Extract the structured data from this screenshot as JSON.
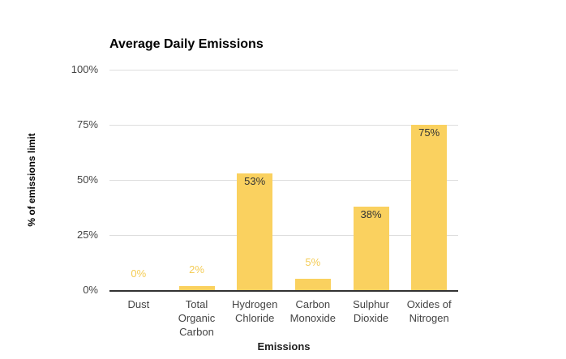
{
  "chart_data": {
    "type": "bar",
    "title": "Average Daily Emissions",
    "xlabel": "Emissions",
    "ylabel": "% of emissions limit",
    "categories": [
      "Dust",
      "Total Organic Carbon",
      "Hydrogen Chloride",
      "Carbon Monoxide",
      "Sulphur Dioxide",
      "Oxides of Nitrogen"
    ],
    "values": [
      0,
      2,
      53,
      5,
      38,
      75
    ],
    "data_labels": [
      "0%",
      "2%",
      "53%",
      "5%",
      "38%",
      "75%"
    ],
    "y_ticks": [
      "0%",
      "25%",
      "50%",
      "75%",
      "100%"
    ],
    "ylim": [
      0,
      100
    ],
    "grid": true,
    "legend": "none",
    "colors": {
      "bar": "#FAD15F",
      "label_outside": "#F4CC55",
      "label_inside": "#333333",
      "gridline": "#DDDDDD",
      "axis_line": "#333333",
      "tick_text": "#444444",
      "title_text": "#000000"
    }
  }
}
